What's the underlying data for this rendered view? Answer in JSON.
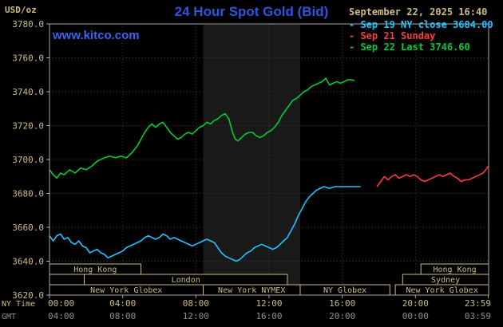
{
  "header": {
    "unit_label": "USD/oz",
    "title": "24 Hour Spot Gold (Bid)",
    "datetime": "September 22, 2025 16:40",
    "watermark": "www.kitco.com"
  },
  "legend": {
    "marker": "-",
    "items": [
      {
        "label": "Sep 19 NY close 3684.00",
        "color": "#1fc4ff"
      },
      {
        "label": "Sep 21 Sunday",
        "color": "#ff3b3b"
      },
      {
        "label": "Sep 22 Last 3746.60",
        "color": "#00cc33"
      }
    ]
  },
  "colors": {
    "background": "#000000",
    "title_blue": "#2f54e0",
    "link_blue": "#3565f2",
    "axis_tan": "#ccbc80",
    "gmt_gray": "#8f8f8f",
    "grid": "#404040",
    "border": "#a8a8a8",
    "session_box": "#ccbc80",
    "nymex_band": "#191919"
  },
  "chart_data": {
    "type": "line",
    "title": "24 Hour Spot Gold (Bid)",
    "ylabel": "USD/oz",
    "x_axis": {
      "label_ny": "NY Time",
      "label_gmt": "GMT",
      "ny_ticks": [
        "00:00",
        "04:00",
        "08:00",
        "12:00",
        "16:00",
        "20:00",
        "23:59"
      ],
      "gmt_ticks": [
        "04:00",
        "08:00",
        "12:00",
        "16:00",
        "20:00",
        "00:00",
        "03:59"
      ],
      "tick_hours": [
        0,
        4,
        8,
        12,
        16,
        20,
        23.983
      ],
      "range_hours": [
        0,
        24
      ]
    },
    "y_axis": {
      "range": [
        3620,
        3780
      ],
      "ticks": [
        3620,
        3640,
        3660,
        3680,
        3700,
        3720,
        3740,
        3760,
        3780
      ],
      "tick_labels": [
        "3620.0",
        "3640.0",
        "3660.0",
        "3680.0",
        "3700.0",
        "3720.0",
        "3740.0",
        "3760.0",
        "3780.0"
      ]
    },
    "highlight_band": {
      "start": 8.4,
      "end": 13.7
    },
    "series": [
      {
        "name": "Sep 19 NY close",
        "color": "#1fc4ff",
        "points": [
          [
            0,
            3655
          ],
          [
            0.2,
            3652
          ],
          [
            0.4,
            3655
          ],
          [
            0.6,
            3656
          ],
          [
            0.8,
            3653
          ],
          [
            1,
            3654
          ],
          [
            1.2,
            3651
          ],
          [
            1.4,
            3650
          ],
          [
            1.6,
            3652
          ],
          [
            1.8,
            3649
          ],
          [
            2,
            3648
          ],
          [
            2.2,
            3645
          ],
          [
            2.4,
            3646
          ],
          [
            2.6,
            3647
          ],
          [
            2.8,
            3645
          ],
          [
            3,
            3644
          ],
          [
            3.2,
            3642
          ],
          [
            3.4,
            3643
          ],
          [
            3.6,
            3644
          ],
          [
            3.8,
            3645
          ],
          [
            4,
            3646
          ],
          [
            4.2,
            3648
          ],
          [
            4.4,
            3649
          ],
          [
            4.6,
            3650
          ],
          [
            4.8,
            3651
          ],
          [
            5,
            3652
          ],
          [
            5.2,
            3654
          ],
          [
            5.4,
            3655
          ],
          [
            5.6,
            3654
          ],
          [
            5.8,
            3653
          ],
          [
            6,
            3654
          ],
          [
            6.2,
            3656
          ],
          [
            6.4,
            3655
          ],
          [
            6.6,
            3653
          ],
          [
            6.8,
            3654
          ],
          [
            7,
            3653
          ],
          [
            7.2,
            3652
          ],
          [
            7.4,
            3651
          ],
          [
            7.6,
            3650
          ],
          [
            7.8,
            3649
          ],
          [
            8,
            3650
          ],
          [
            8.2,
            3651
          ],
          [
            8.4,
            3652
          ],
          [
            8.6,
            3653
          ],
          [
            8.8,
            3652
          ],
          [
            9,
            3651
          ],
          [
            9.2,
            3648
          ],
          [
            9.4,
            3645
          ],
          [
            9.6,
            3643
          ],
          [
            9.8,
            3642
          ],
          [
            10,
            3641
          ],
          [
            10.2,
            3640
          ],
          [
            10.4,
            3641
          ],
          [
            10.6,
            3643
          ],
          [
            10.8,
            3645
          ],
          [
            11,
            3646
          ],
          [
            11.2,
            3648
          ],
          [
            11.4,
            3649
          ],
          [
            11.6,
            3650
          ],
          [
            11.8,
            3649
          ],
          [
            12,
            3648
          ],
          [
            12.2,
            3647
          ],
          [
            12.4,
            3648
          ],
          [
            12.6,
            3650
          ],
          [
            12.8,
            3652
          ],
          [
            13,
            3654
          ],
          [
            13.2,
            3658
          ],
          [
            13.4,
            3662
          ],
          [
            13.6,
            3667
          ],
          [
            13.8,
            3671
          ],
          [
            14,
            3675
          ],
          [
            14.2,
            3678
          ],
          [
            14.4,
            3680
          ],
          [
            14.6,
            3682
          ],
          [
            14.8,
            3683
          ],
          [
            15,
            3684
          ],
          [
            15.3,
            3683
          ],
          [
            15.6,
            3684
          ],
          [
            16,
            3684
          ],
          [
            16.4,
            3684
          ],
          [
            16.7,
            3684
          ],
          [
            17,
            3684
          ]
        ]
      },
      {
        "name": "Sep 21 Sunday",
        "color": "#ff3b3b",
        "points": [
          [
            17.9,
            3684
          ],
          [
            18.1,
            3687
          ],
          [
            18.3,
            3690
          ],
          [
            18.5,
            3688
          ],
          [
            18.7,
            3690
          ],
          [
            18.9,
            3691
          ],
          [
            19.1,
            3689
          ],
          [
            19.3,
            3690
          ],
          [
            19.5,
            3691
          ],
          [
            19.7,
            3690
          ],
          [
            19.9,
            3691
          ],
          [
            20.1,
            3690
          ],
          [
            20.3,
            3688
          ],
          [
            20.5,
            3687
          ],
          [
            20.7,
            3688
          ],
          [
            20.9,
            3689
          ],
          [
            21.1,
            3690
          ],
          [
            21.3,
            3691
          ],
          [
            21.5,
            3690
          ],
          [
            21.7,
            3691
          ],
          [
            21.9,
            3692
          ],
          [
            22.1,
            3690
          ],
          [
            22.3,
            3689
          ],
          [
            22.5,
            3687
          ],
          [
            22.7,
            3688
          ],
          [
            22.9,
            3688
          ],
          [
            23.1,
            3689
          ],
          [
            23.3,
            3690
          ],
          [
            23.5,
            3691
          ],
          [
            23.7,
            3692
          ],
          [
            23.85,
            3694
          ],
          [
            23.98,
            3696
          ]
        ]
      },
      {
        "name": "Sep 22 Last",
        "color": "#00cc33",
        "points": [
          [
            0,
            3694
          ],
          [
            0.2,
            3691
          ],
          [
            0.4,
            3689
          ],
          [
            0.6,
            3692
          ],
          [
            0.8,
            3691
          ],
          [
            1.1,
            3694
          ],
          [
            1.4,
            3692
          ],
          [
            1.7,
            3695
          ],
          [
            2,
            3694
          ],
          [
            2.3,
            3696
          ],
          [
            2.6,
            3699
          ],
          [
            3,
            3701
          ],
          [
            3.3,
            3702
          ],
          [
            3.6,
            3701
          ],
          [
            3.9,
            3702
          ],
          [
            4.2,
            3701
          ],
          [
            4.5,
            3704
          ],
          [
            4.8,
            3708
          ],
          [
            5,
            3712
          ],
          [
            5.2,
            3716
          ],
          [
            5.4,
            3719
          ],
          [
            5.6,
            3721
          ],
          [
            5.8,
            3719
          ],
          [
            6,
            3721
          ],
          [
            6.2,
            3722
          ],
          [
            6.4,
            3719
          ],
          [
            6.6,
            3716
          ],
          [
            6.8,
            3714
          ],
          [
            7,
            3712
          ],
          [
            7.2,
            3713
          ],
          [
            7.4,
            3715
          ],
          [
            7.6,
            3716
          ],
          [
            7.8,
            3715
          ],
          [
            8,
            3717
          ],
          [
            8.2,
            3719
          ],
          [
            8.4,
            3720
          ],
          [
            8.6,
            3722
          ],
          [
            8.8,
            3721
          ],
          [
            9,
            3723
          ],
          [
            9.2,
            3724
          ],
          [
            9.4,
            3726
          ],
          [
            9.6,
            3727
          ],
          [
            9.8,
            3724
          ],
          [
            10,
            3716
          ],
          [
            10.15,
            3712
          ],
          [
            10.3,
            3711
          ],
          [
            10.5,
            3713
          ],
          [
            10.7,
            3715
          ],
          [
            10.9,
            3716
          ],
          [
            11.1,
            3716
          ],
          [
            11.3,
            3714
          ],
          [
            11.5,
            3713
          ],
          [
            11.7,
            3714
          ],
          [
            11.9,
            3716
          ],
          [
            12.1,
            3717
          ],
          [
            12.3,
            3719
          ],
          [
            12.5,
            3722
          ],
          [
            12.7,
            3726
          ],
          [
            12.9,
            3729
          ],
          [
            13.1,
            3732
          ],
          [
            13.3,
            3735
          ],
          [
            13.5,
            3736
          ],
          [
            13.7,
            3738
          ],
          [
            13.9,
            3740
          ],
          [
            14.1,
            3741
          ],
          [
            14.3,
            3743
          ],
          [
            14.5,
            3744
          ],
          [
            14.7,
            3745
          ],
          [
            14.9,
            3746
          ],
          [
            15.1,
            3748
          ],
          [
            15.3,
            3744
          ],
          [
            15.5,
            3745
          ],
          [
            15.7,
            3746
          ],
          [
            15.9,
            3745
          ],
          [
            16.1,
            3746
          ],
          [
            16.3,
            3747
          ],
          [
            16.5,
            3747
          ],
          [
            16.67,
            3746.6
          ]
        ]
      }
    ],
    "sessions": [
      {
        "row": 0,
        "start": 0,
        "end": 5,
        "label": "Hong Kong"
      },
      {
        "row": 0,
        "start": 20.3,
        "end": 24,
        "label": "Hong Kong"
      },
      {
        "row": 1,
        "start": 1.9,
        "end": 13,
        "label": "London"
      },
      {
        "row": 1,
        "start": 19.3,
        "end": 24,
        "label": "Sydney"
      },
      {
        "row": 2,
        "start": 0,
        "end": 8.4,
        "label": "New York Globex"
      },
      {
        "row": 2,
        "start": 8.4,
        "end": 13.7,
        "label": "New York NYMEX"
      },
      {
        "row": 2,
        "start": 13.7,
        "end": 18.6,
        "label": "NY Globex"
      },
      {
        "row": 2,
        "start": 18.9,
        "end": 24,
        "label": "New York Globex"
      }
    ]
  }
}
